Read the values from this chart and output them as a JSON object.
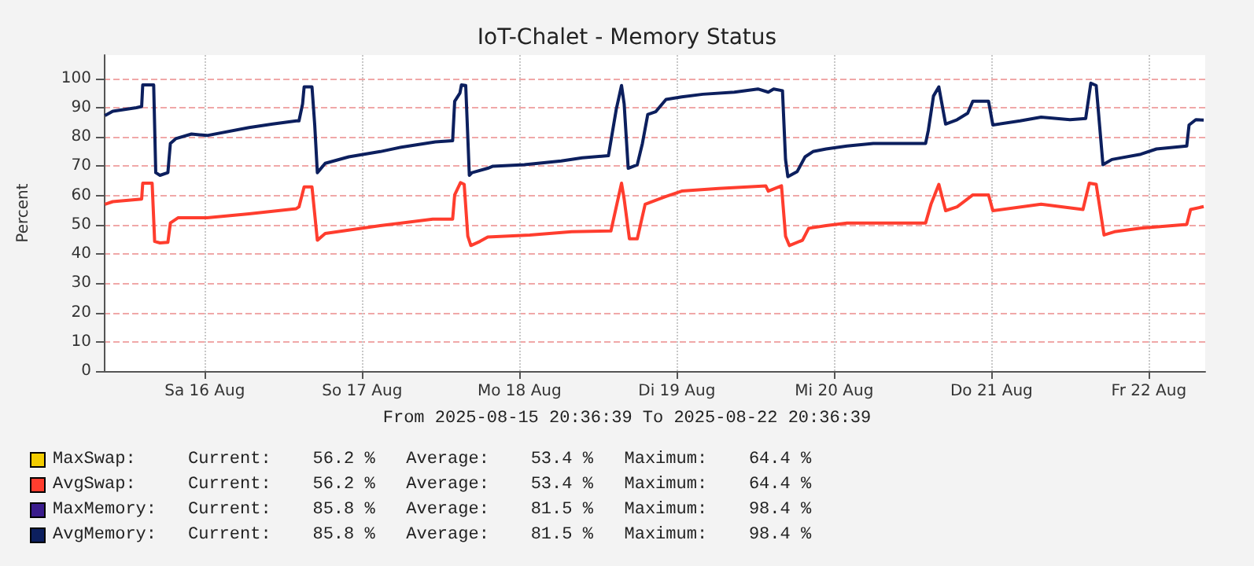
{
  "chart_data": {
    "type": "line",
    "title": "IoT-Chalet - Memory Status",
    "subtitle": "From 2025-08-15 20:36:39 To 2025-08-22 20:36:39",
    "ylabel": "Percent",
    "xlim": [
      "2025-08-15T20:36",
      "2025-08-22T20:36"
    ],
    "xticks": [
      {
        "value": "2025-08-16T12:00",
        "label": "Sa 16 Aug"
      },
      {
        "value": "2025-08-17T12:00",
        "label": "So 17 Aug"
      },
      {
        "value": "2025-08-18T12:00",
        "label": "Mo 18 Aug"
      },
      {
        "value": "2025-08-19T12:00",
        "label": "Di 19 Aug"
      },
      {
        "value": "2025-08-20T12:00",
        "label": "Mi 20 Aug"
      },
      {
        "value": "2025-08-21T12:00",
        "label": "Do 21 Aug"
      },
      {
        "value": "2025-08-22T12:00",
        "label": "Fr 22 Aug"
      }
    ],
    "ylim": [
      0,
      108
    ],
    "yticks": [
      0,
      10,
      20,
      30,
      40,
      50,
      60,
      70,
      80,
      90,
      100
    ],
    "grid": true,
    "legend": "bottom left",
    "annotations": [
      "Current:    56.2 %   Average:    53.4 %   Maximum:    64.4 %",
      "Current:    56.2 %   Average:    53.4 %   Maximum:    64.4 %",
      "Current:    85.8 %   Average:    81.5 %   Maximum:    98.4 %",
      "Current:    85.8 %   Average:    81.5 %   Maximum:    98.4 %"
    ],
    "series": [
      {
        "name": "MaxSwap:",
        "color": "#f2cc00"
      },
      {
        "name": "AvgSwap:",
        "color": "#ff3d2e",
        "x": [
          "2025-08-15T20:46",
          "2025-08-15T21:58",
          "2025-08-16T02:22",
          "2025-08-16T02:32",
          "2025-08-16T03:58",
          "2025-08-16T04:21",
          "2025-08-16T05:10",
          "2025-08-16T06:22",
          "2025-08-16T06:45",
          "2025-08-16T07:57",
          "2025-08-16T12:22",
          "2025-08-16T18:45",
          "2025-08-17T01:57",
          "2025-08-17T02:22",
          "2025-08-17T03:09",
          "2025-08-17T04:21",
          "2025-08-17T05:10",
          "2025-08-17T06:22",
          "2025-08-17T14:46",
          "2025-08-17T22:46",
          "2025-08-18T01:48",
          "2025-08-18T02:07",
          "2025-08-18T03:00",
          "2025-08-18T03:34",
          "2025-08-18T04:07",
          "2025-08-18T04:35",
          "2025-08-18T05:58",
          "2025-08-18T07:10",
          "2025-08-18T13:34",
          "2025-08-18T19:57",
          "2025-08-19T01:57",
          "2025-08-19T03:34",
          "2025-08-19T03:58",
          "2025-08-19T04:46",
          "2025-08-19T05:58",
          "2025-08-19T07:10",
          "2025-08-19T10:21",
          "2025-08-19T12:45",
          "2025-08-19T18:22",
          "2025-08-20T01:34",
          "2025-08-20T01:57",
          "2025-08-20T03:58",
          "2025-08-20T04:35",
          "2025-08-20T05:10",
          "2025-08-20T07:10",
          "2025-08-20T08:07",
          "2025-08-20T10:46",
          "2025-08-20T13:57",
          "2025-08-21T01:57",
          "2025-08-21T02:46",
          "2025-08-21T03:58",
          "2025-08-21T05:00",
          "2025-08-21T06:45",
          "2025-08-21T09:09",
          "2025-08-21T11:33",
          "2025-08-21T12:12",
          "2025-08-21T19:34",
          "2025-08-22T01:57",
          "2025-08-22T02:55",
          "2025-08-22T03:58",
          "2025-08-22T05:10",
          "2025-08-22T06:45",
          "2025-08-22T10:46",
          "2025-08-22T17:47",
          "2025-08-22T18:22",
          "2025-08-22T20:22"
        ],
        "values": [
          57.0,
          57.9,
          58.8,
          64.2,
          64.2,
          44.3,
          43.8,
          44.0,
          50.6,
          52.4,
          52.4,
          53.7,
          55.5,
          56.1,
          62.9,
          62.9,
          44.7,
          47.0,
          49.7,
          51.9,
          51.9,
          60.2,
          64.4,
          63.8,
          46.1,
          42.9,
          44.3,
          45.8,
          46.5,
          47.6,
          47.9,
          64.2,
          58.8,
          45.2,
          45.2,
          57.0,
          59.7,
          61.5,
          62.4,
          63.3,
          61.5,
          63.3,
          46.1,
          42.9,
          44.7,
          48.8,
          49.7,
          50.6,
          50.6,
          57.0,
          63.8,
          54.8,
          56.1,
          60.2,
          60.2,
          54.8,
          57.0,
          55.2,
          64.2,
          63.8,
          46.5,
          47.6,
          48.8,
          50.1,
          55.2,
          56.2
        ]
      },
      {
        "name": "MaxMemory:",
        "color": "#3a1c8c"
      },
      {
        "name": "AvgMemory:",
        "color": "#0c1f5e",
        "x": [
          "2025-08-15T20:46",
          "2025-08-15T21:58",
          "2025-08-16T01:34",
          "2025-08-16T02:22",
          "2025-08-16T02:32",
          "2025-08-16T04:12",
          "2025-08-16T04:31",
          "2025-08-16T05:10",
          "2025-08-16T06:22",
          "2025-08-16T06:45",
          "2025-08-16T07:34",
          "2025-08-16T09:58",
          "2025-08-16T12:22",
          "2025-08-16T18:45",
          "2025-08-16T22:21",
          "2025-08-17T01:57",
          "2025-08-17T02:22",
          "2025-08-17T02:55",
          "2025-08-17T03:09",
          "2025-08-17T04:21",
          "2025-08-17T04:46",
          "2025-08-17T05:10",
          "2025-08-17T06:22",
          "2025-08-17T09:58",
          "2025-08-17T14:46",
          "2025-08-17T17:58",
          "2025-08-17T23:10",
          "2025-08-18T01:48",
          "2025-08-18T02:07",
          "2025-08-18T02:55",
          "2025-08-18T03:09",
          "2025-08-18T03:48",
          "2025-08-18T04:21",
          "2025-08-18T04:46",
          "2025-08-18T07:10",
          "2025-08-18T07:57",
          "2025-08-18T12:45",
          "2025-08-18T18:22",
          "2025-08-18T21:34",
          "2025-08-19T01:34",
          "2025-08-19T02:46",
          "2025-08-19T03:34",
          "2025-08-19T03:58",
          "2025-08-19T04:35",
          "2025-08-19T05:58",
          "2025-08-19T06:45",
          "2025-08-19T07:34",
          "2025-08-19T08:46",
          "2025-08-19T10:21",
          "2025-08-19T12:45",
          "2025-08-19T15:58",
          "2025-08-19T20:46",
          "2025-08-20T00:22",
          "2025-08-20T01:57",
          "2025-08-20T02:46",
          "2025-08-20T04:07",
          "2025-08-20T04:35",
          "2025-08-20T04:56",
          "2025-08-20T06:22",
          "2025-08-20T07:34",
          "2025-08-20T08:46",
          "2025-08-20T10:46",
          "2025-08-20T13:57",
          "2025-08-20T17:58",
          "2025-08-21T01:57",
          "2025-08-21T02:22",
          "2025-08-21T03:09",
          "2025-08-21T03:58",
          "2025-08-21T05:00",
          "2025-08-21T06:45",
          "2025-08-21T08:22",
          "2025-08-21T09:09",
          "2025-08-21T11:33",
          "2025-08-21T12:12",
          "2025-08-21T16:21",
          "2025-08-21T19:34",
          "2025-08-21T23:58",
          "2025-08-22T02:22",
          "2025-08-22T03:09",
          "2025-08-22T03:58",
          "2025-08-22T05:00",
          "2025-08-22T06:22",
          "2025-08-22T10:46",
          "2025-08-22T13:10",
          "2025-08-22T17:47",
          "2025-08-22T18:08",
          "2025-08-22T19:10",
          "2025-08-22T20:22"
        ],
        "values": [
          87.3,
          88.8,
          90.0,
          90.4,
          97.8,
          97.8,
          67.8,
          66.9,
          67.8,
          77.8,
          79.4,
          81.0,
          80.5,
          83.2,
          84.4,
          85.5,
          85.5,
          91.3,
          97.1,
          97.1,
          84.1,
          67.8,
          71.0,
          73.2,
          75.0,
          76.5,
          78.3,
          78.7,
          92.2,
          95.0,
          97.8,
          97.6,
          66.9,
          67.8,
          69.3,
          70.0,
          70.5,
          71.8,
          72.9,
          73.6,
          89.5,
          97.6,
          91.3,
          69.3,
          70.5,
          77.8,
          87.7,
          88.6,
          92.8,
          93.7,
          94.6,
          95.3,
          96.4,
          95.3,
          96.4,
          95.8,
          72.3,
          66.4,
          68.2,
          73.2,
          75.0,
          75.9,
          76.9,
          77.8,
          77.8,
          82.3,
          94.0,
          97.1,
          84.4,
          85.9,
          88.1,
          92.2,
          92.2,
          84.1,
          85.5,
          86.8,
          85.9,
          86.3,
          98.4,
          97.6,
          70.5,
          72.3,
          74.1,
          75.9,
          76.9,
          84.1,
          85.9,
          85.8
        ]
      }
    ]
  }
}
